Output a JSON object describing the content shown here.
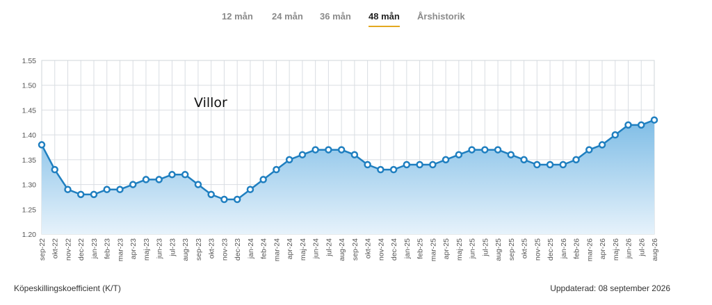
{
  "tabs": [
    {
      "label": "12 mån",
      "active": false
    },
    {
      "label": "24 mån",
      "active": false
    },
    {
      "label": "36 mån",
      "active": false
    },
    {
      "label": "48 mån",
      "active": true
    },
    {
      "label": "Årshistorik",
      "active": false
    }
  ],
  "footer": {
    "metric_label": "Köpeskillingskoefficient (K/T)",
    "updated": "Uppdaterad: 08 september 2026"
  },
  "colors": {
    "line": "#1f7fc0",
    "fill_top": "#7fbde6",
    "fill_bottom": "#e6f2fb",
    "tab_accent": "#e3a820"
  },
  "chart_data": {
    "type": "area",
    "series": [
      {
        "name": "Villor",
        "values": [
          1.38,
          1.33,
          1.29,
          1.28,
          1.28,
          1.29,
          1.29,
          1.3,
          1.31,
          1.31,
          1.32,
          1.32,
          1.3,
          1.28,
          1.27,
          1.27,
          1.29,
          1.31,
          1.33,
          1.35,
          1.36,
          1.37,
          1.37,
          1.37,
          1.36,
          1.34,
          1.33,
          1.33,
          1.34,
          1.34,
          1.34,
          1.35,
          1.36,
          1.37,
          1.37,
          1.37,
          1.36,
          1.35,
          1.34,
          1.34,
          1.34,
          1.35,
          1.37,
          1.38,
          1.4,
          1.42,
          1.42,
          1.43
        ]
      }
    ],
    "categories": [
      "sep-22",
      "okt-22",
      "nov-22",
      "dec-22",
      "jan-23",
      "feb-23",
      "mar-23",
      "apr-23",
      "maj-23",
      "jun-23",
      "jul-23",
      "aug-23",
      "sep-23",
      "okt-23",
      "nov-23",
      "dec-23",
      "jan-24",
      "feb-24",
      "mar-24",
      "apr-24",
      "maj-24",
      "jun-24",
      "jul-24",
      "aug-24",
      "sep-24",
      "okt-24",
      "nov-24",
      "dec-24",
      "jan-25",
      "feb-25",
      "mar-25",
      "apr-25",
      "maj-25",
      "jun-25",
      "jul-25",
      "aug-25",
      "sep-25",
      "okt-25",
      "nov-25",
      "dec-25",
      "jan-26",
      "feb-26",
      "mar-26",
      "apr-26",
      "maj-26",
      "jun-26",
      "jul-26",
      "aug-26"
    ],
    "y_ticks": [
      "1.20",
      "1.25",
      "1.30",
      "1.35",
      "1.40",
      "1.45",
      "1.50",
      "1.55"
    ],
    "ylim": [
      1.2,
      1.55
    ],
    "grid": true,
    "xlabel": "",
    "ylabel": ""
  }
}
